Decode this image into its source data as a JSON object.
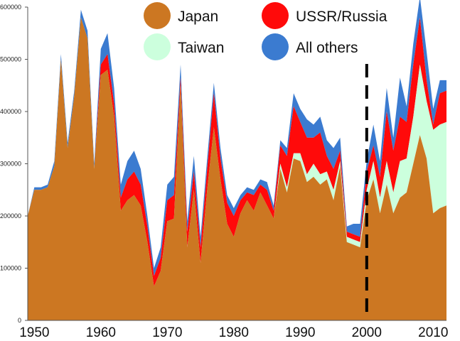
{
  "chart_data": {
    "type": "area",
    "stacked": true,
    "title": "",
    "xlabel": "",
    "ylabel": "",
    "xlim": [
      1949,
      2012
    ],
    "ylim": [
      0,
      600000
    ],
    "y_ticks": [
      0,
      100000,
      200000,
      300000,
      400000,
      500000,
      600000
    ],
    "y_tick_labels": [
      "0",
      "100000",
      "200000",
      "300000",
      "400000",
      "500000",
      "600000"
    ],
    "x_ticks": [
      1950,
      1960,
      1970,
      1980,
      1990,
      2000,
      2010
    ],
    "x_tick_labels": [
      "1950",
      "1960",
      "1970",
      "1980",
      "1990",
      "2000",
      "2010"
    ],
    "grid": false,
    "legend_position": "top",
    "marker_line": {
      "x": 2000,
      "style": "dashed"
    },
    "x": [
      1949,
      1950,
      1951,
      1952,
      1953,
      1954,
      1955,
      1956,
      1957,
      1958,
      1959,
      1960,
      1961,
      1962,
      1963,
      1964,
      1965,
      1966,
      1967,
      1968,
      1969,
      1970,
      1971,
      1972,
      1973,
      1974,
      1975,
      1976,
      1977,
      1978,
      1979,
      1980,
      1981,
      1982,
      1983,
      1984,
      1985,
      1986,
      1987,
      1988,
      1989,
      1990,
      1991,
      1992,
      1993,
      1994,
      1995,
      1996,
      1997,
      1998,
      1999,
      2000,
      2001,
      2002,
      2003,
      2004,
      2005,
      2006,
      2007,
      2008,
      2009,
      2010,
      2011,
      2012
    ],
    "series": [
      {
        "name": "Japan",
        "color": "#cc7722",
        "values": [
          200000,
          250000,
          250000,
          255000,
          295000,
          500000,
          330000,
          430000,
          580000,
          540000,
          290000,
          470000,
          480000,
          390000,
          210000,
          230000,
          240000,
          220000,
          150000,
          65000,
          95000,
          190000,
          195000,
          450000,
          140000,
          250000,
          110000,
          250000,
          370000,
          270000,
          185000,
          160000,
          205000,
          230000,
          210000,
          245000,
          220000,
          195000,
          290000,
          245000,
          310000,
          305000,
          265000,
          275000,
          260000,
          270000,
          230000,
          295000,
          150000,
          145000,
          140000,
          230000,
          270000,
          205000,
          260000,
          205000,
          235000,
          245000,
          300000,
          355000,
          310000,
          205000,
          215000,
          220000
        ]
      },
      {
        "name": "Taiwan",
        "color": "#ccffdd",
        "values": [
          0,
          0,
          0,
          0,
          0,
          0,
          0,
          0,
          0,
          0,
          0,
          0,
          0,
          0,
          0,
          0,
          0,
          0,
          0,
          0,
          0,
          0,
          0,
          0,
          0,
          0,
          0,
          0,
          0,
          0,
          0,
          0,
          0,
          0,
          0,
          0,
          0,
          0,
          10000,
          10000,
          10000,
          15000,
          15000,
          25000,
          20000,
          15000,
          20000,
          10000,
          10000,
          10000,
          10000,
          20000,
          35000,
          30000,
          45000,
          40000,
          70000,
          65000,
          90000,
          135000,
          110000,
          160000,
          160000,
          160000
        ]
      },
      {
        "name": "USSR/Russia",
        "color": "#ff0a0a",
        "values": [
          0,
          0,
          0,
          0,
          0,
          0,
          0,
          0,
          0,
          0,
          0,
          20000,
          30000,
          25000,
          25000,
          40000,
          45000,
          40000,
          30000,
          20000,
          25000,
          40000,
          45000,
          15000,
          30000,
          35000,
          30000,
          40000,
          65000,
          40000,
          40000,
          40000,
          25000,
          15000,
          30000,
          15000,
          30000,
          15000,
          35000,
          60000,
          90000,
          60000,
          70000,
          50000,
          80000,
          30000,
          40000,
          20000,
          10000,
          10000,
          10000,
          35000,
          30000,
          40000,
          95000,
          80000,
          85000,
          70000,
          100000,
          90000,
          40000,
          10000,
          60000,
          60000
        ]
      },
      {
        "name": "All others",
        "color": "#3b7bd0",
        "values": [
          0,
          5000,
          5000,
          5000,
          10000,
          10000,
          10000,
          10000,
          15000,
          15000,
          10000,
          30000,
          40000,
          30000,
          25000,
          35000,
          40000,
          30000,
          20000,
          15000,
          20000,
          30000,
          35000,
          25000,
          20000,
          30000,
          20000,
          20000,
          20000,
          20000,
          15000,
          15000,
          10000,
          10000,
          10000,
          10000,
          15000,
          10000,
          10000,
          15000,
          25000,
          25000,
          35000,
          25000,
          30000,
          30000,
          40000,
          25000,
          10000,
          20000,
          25000,
          20000,
          40000,
          30000,
          45000,
          25000,
          75000,
          30000,
          40000,
          40000,
          55000,
          30000,
          25000,
          20000
        ]
      }
    ]
  }
}
